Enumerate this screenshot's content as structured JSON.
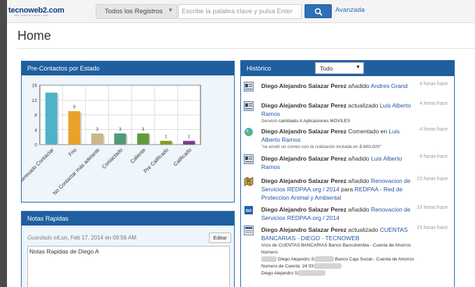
{
  "header": {
    "logo_text": "tecnoweb2.com",
    "logo_tagline": "CRM - Gestión de contactos y ventas",
    "registros_label": "Todos los Registros",
    "search_placeholder": "Escribe la palabra clave y pulsa Enter",
    "advanced_label": "Avanzada"
  },
  "page": {
    "title": "Home"
  },
  "precontactos": {
    "title": "Pre-Contactos por Estado"
  },
  "chart_data": {
    "type": "bar",
    "categories": [
      "No Interesado Contactar",
      "Frio",
      "No Contactar más adelante",
      "Contactado",
      "Caliente",
      "Pre Calificado",
      "Calificado"
    ],
    "values": [
      14,
      9,
      3,
      3,
      3,
      1,
      1
    ],
    "data_labels": [
      "",
      "9",
      "3",
      "3",
      "3",
      "1",
      "1"
    ],
    "colors": [
      "#4db3c9",
      "#e8a12a",
      "#c9b98a",
      "#4f9a77",
      "#5f9a3f",
      "#8f9a23",
      "#7c3d8e"
    ],
    "ylim": [
      0,
      16
    ],
    "yticks": [
      "0",
      "4",
      "8",
      "12",
      "16"
    ],
    "title": "",
    "xlabel": "",
    "ylabel": ""
  },
  "notas": {
    "title": "Notas Rapidas",
    "saved_label": "Guardado el",
    "saved_date": "Lun, Feb 17, 2014 en 09:56 AM",
    "edit_label": "Editar",
    "content": "Notas Rapidas de Diego A"
  },
  "historico": {
    "title": "Histórico",
    "filter_value": "Todo",
    "items": [
      {
        "user": "Diego Alejandro Salazar Perez",
        "action": " añadido ",
        "target": "Andres Grand",
        "time": "4 horas hace"
      },
      {
        "user": "Diego Alejandro Salazar Perez",
        "action": " actualizado ",
        "target": "Luis Alberto Ramos",
        "note_field": "Servicio",
        "note_text": " cambiado A ",
        "note_value": "Aplicaciones MOVILES",
        "time": "4 horas hace"
      },
      {
        "user": "Diego Alejandro Salazar Perez",
        "action": " Comentado en ",
        "target": "Luis Alberto Ramos",
        "note_text": "\"se envió un correo con la cotización incluida en $ 869.000\"",
        "time": "4 horas hace"
      },
      {
        "user": "Diego Alejandro Salazar Perez",
        "action": " añadido ",
        "target": "Luis Alberto Ramos",
        "time": "4 horas hace"
      },
      {
        "user": "Diego Alejandro Salazar Perez",
        "action": " añadido ",
        "target": "Renovacion de Servicios REDPAA.org / 2014",
        "mid": " para ",
        "target2": "REDPAA - Red de Proteccion Animal y Ambiental",
        "time": "23 horas hace"
      },
      {
        "user": "Diego Alejandro Salazar Perez",
        "action": " añadido ",
        "target": "Renovacion de Servicios REDPAA.org / 2014",
        "time": "23 horas hace"
      },
      {
        "user": "Diego Alejandro Salazar Perez",
        "action": " actualizado ",
        "target": "CUENTAS BANCARIAS - DIEGO - TECNOWEB",
        "note_field": "Nota",
        "note_text": " de ",
        "note_value": "CUENTAS BANCARIAS  Banco Bancolombia - Cuenta de Ahorros Numero:",
        "note_line2a": "Diego Alejandro S",
        "note_line2b": "Banco Caja Social - Cuenta de Ahorros",
        "note_line3": "Numero de Cuenta: 24 03",
        "note_line4": "Diego Alejandro S",
        "time": "23 horas hace"
      }
    ]
  }
}
